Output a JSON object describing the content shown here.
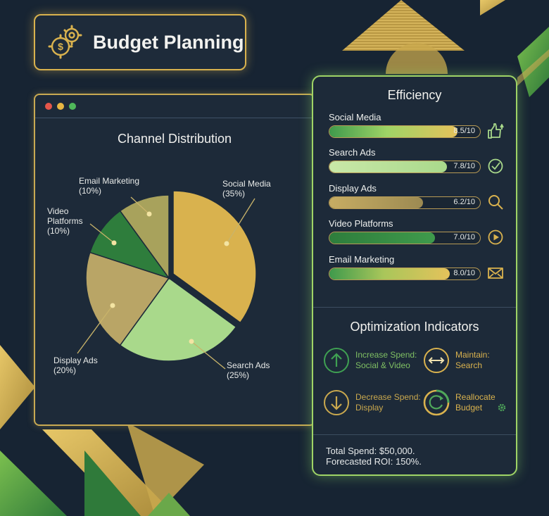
{
  "app": {
    "title": "Budget Planning"
  },
  "colors": {
    "background": "#172433",
    "gold": "#d9b24e",
    "green_accent": "#9fd466",
    "dark_green": "#2e7d3c"
  },
  "distribution": {
    "title": "Channel Distribution",
    "labels": {
      "social": "Social Media\n(35%)",
      "search": "Search Ads\n(25%)",
      "display": "Display Ads\n(20%)",
      "video": "Video\nPlatforms\n(10%)",
      "email": "Email Marketing\n(10%)"
    }
  },
  "chart_data": {
    "type": "pie",
    "title": "Channel Distribution",
    "categories": [
      "Social Media",
      "Search Ads",
      "Display Ads",
      "Video Platforms",
      "Email Marketing"
    ],
    "values": [
      35,
      25,
      20,
      10,
      10
    ],
    "unit": "%",
    "colors": [
      "#d9b24e",
      "#a9d98b",
      "#b9a566",
      "#2e7d3c",
      "#a8a25c"
    ]
  },
  "efficiency": {
    "title": "Efficiency",
    "items": [
      {
        "label": "Social Media",
        "score": 8.5,
        "display": "8.5/10",
        "icon": "thumbs-up-icon"
      },
      {
        "label": "Search Ads",
        "score": 7.8,
        "display": "7.8/10",
        "icon": "checkmark-icon"
      },
      {
        "label": "Display Ads",
        "score": 6.2,
        "display": "6.2/10",
        "icon": "magnifier-icon"
      },
      {
        "label": "Video Platforms",
        "score": 7.0,
        "display": "7.0/10",
        "icon": "play-icon"
      },
      {
        "label": "Email Marketing",
        "score": 8.0,
        "display": "8.0/10",
        "icon": "envelope-icon"
      }
    ]
  },
  "optimization": {
    "title": "Optimization Indicators",
    "increase": "Increase Spend:\nSocial & Video",
    "maintain": "Maintain:\nSearch",
    "decrease": "Decrease Spend:\nDisplay",
    "reallocate": "Reallocate\nBudget"
  },
  "summary": {
    "total_spend": "Total Spend: $50,000.",
    "forecast_roi": "Forecasted ROI: 150%."
  }
}
